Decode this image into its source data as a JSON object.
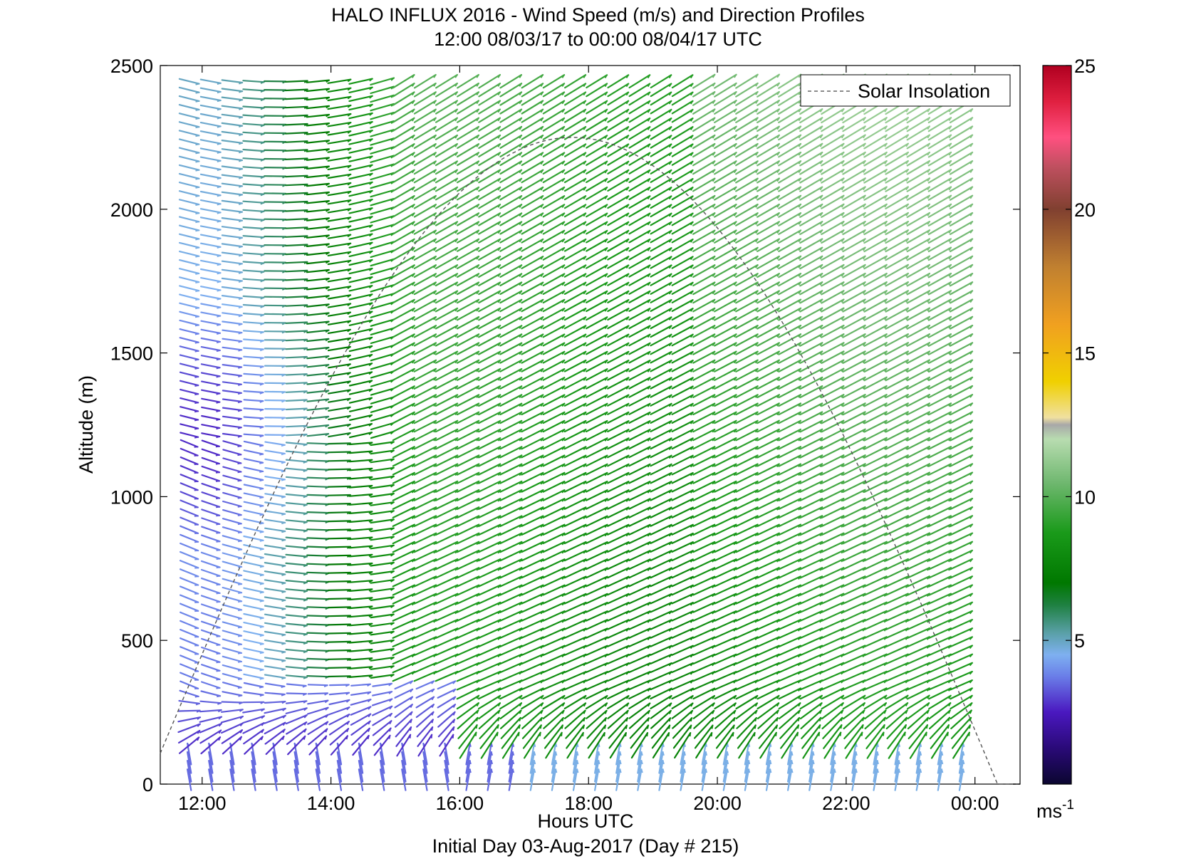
{
  "title": "HALO INFLUX 2016 - Wind Speed (m/s) and Direction Profiles",
  "subtitle": "12:00 08/03/17 to 00:00 08/04/17  UTC",
  "colorbar_unit": "ms",
  "colorbar_unit_exp": "-1",
  "chart_data": {
    "type": "wind-barb-field",
    "title": "HALO INFLUX 2016 - Wind Speed (m/s) and Direction Profiles",
    "subtitle": "12:00 08/03/17 to 00:00 08/04/17  UTC",
    "xlabel": "Hours UTC",
    "xlabel2": "Initial Day 03-Aug-2017 (Day # 215)",
    "ylabel": "Altitude (m)",
    "xlim_hours": [
      11.35,
      24.7
    ],
    "ylim": [
      0,
      2500
    ],
    "x_ticks": [
      {
        "hour": 12,
        "label": "12:00"
      },
      {
        "hour": 14,
        "label": "14:00"
      },
      {
        "hour": 16,
        "label": "16:00"
      },
      {
        "hour": 18,
        "label": "18:00"
      },
      {
        "hour": 20,
        "label": "20:00"
      },
      {
        "hour": 22,
        "label": "22:00"
      },
      {
        "hour": 24,
        "label": "00:00"
      }
    ],
    "y_ticks": [
      0,
      500,
      1000,
      1500,
      2000,
      2500
    ],
    "time_range_hours": [
      11.8,
      23.8
    ],
    "profile_interval_hours": 0.333,
    "altitude_step_m": 30,
    "colorbar": {
      "min": 0,
      "max": 25,
      "ticks": [
        5,
        10,
        15,
        20,
        25
      ]
    },
    "legend": {
      "label": "Solar Insolation",
      "placement": "top-right",
      "style": "dashed"
    },
    "solar_insolation": {
      "peak_hour": 17.75,
      "peak_altitude_m": 2250,
      "line_color": "#555555"
    },
    "wind_regimes": [
      {
        "region": "lower-left (12:00-15:30, surface layer)",
        "speed_ms": "1-4",
        "direction": "northerly / variable"
      },
      {
        "region": "left (12:00-15:00, 300-2500 m)",
        "speed_ms": "3-6",
        "direction": "west-southwesterly"
      },
      {
        "region": "center and right (15:00-24:00, 300-2500 m)",
        "speed_ms": "6-12",
        "direction": "southwesterly"
      },
      {
        "region": "surface (16:00-24:00, <100 m)",
        "speed_ms": "4-7",
        "direction": "southerly"
      }
    ]
  }
}
